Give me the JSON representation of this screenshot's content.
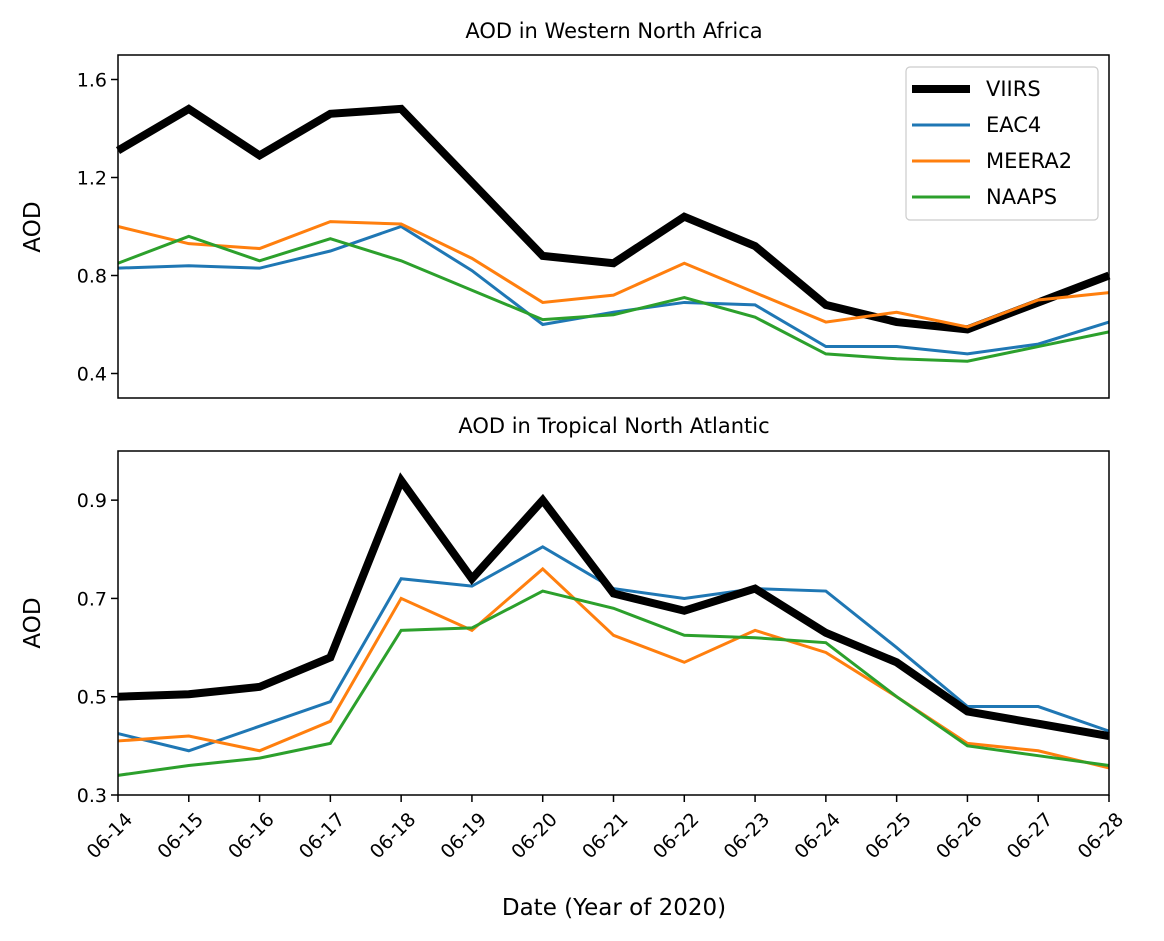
{
  "chart_data": {
    "type": "line",
    "x": [
      "06-14",
      "06-15",
      "06-16",
      "06-17",
      "06-18",
      "06-19",
      "06-20",
      "06-21",
      "06-22",
      "06-23",
      "06-24",
      "06-25",
      "06-26",
      "06-27",
      "06-28"
    ],
    "xlabel": "Date (Year of 2020)",
    "legend": {
      "placement": "top-right",
      "entries": [
        "VIIRS",
        "EAC4",
        "MEERA2",
        "NAAPS"
      ]
    },
    "colors": {
      "VIIRS": "#000000",
      "EAC4": "#1f77b4",
      "MEERA2": "#ff7f0e",
      "NAAPS": "#2ca02c"
    },
    "panels": [
      {
        "title": "AOD in Western North Africa",
        "ylabel": "AOD",
        "ylim": [
          0.3,
          1.7
        ],
        "yticks": [
          "0.4",
          "0.8",
          "1.2",
          "1.6"
        ],
        "ytick_values": [
          0.4,
          0.8,
          1.2,
          1.6
        ],
        "show_xticks": false,
        "series": [
          {
            "name": "VIIRS",
            "values": [
              1.31,
              1.48,
              1.29,
              1.46,
              1.48,
              1.18,
              0.88,
              0.85,
              1.04,
              0.92,
              0.68,
              0.61,
              0.58,
              0.69,
              0.8
            ]
          },
          {
            "name": "EAC4",
            "values": [
              0.83,
              0.84,
              0.83,
              0.9,
              1.0,
              0.82,
              0.6,
              0.65,
              0.69,
              0.68,
              0.51,
              0.51,
              0.48,
              0.52,
              0.61
            ]
          },
          {
            "name": "MEERA2",
            "values": [
              1.0,
              0.93,
              0.91,
              1.02,
              1.01,
              0.87,
              0.69,
              0.72,
              0.85,
              0.73,
              0.61,
              0.65,
              0.59,
              0.7,
              0.73
            ]
          },
          {
            "name": "NAAPS",
            "values": [
              0.85,
              0.96,
              0.86,
              0.95,
              0.86,
              0.74,
              0.62,
              0.64,
              0.71,
              0.63,
              0.48,
              0.46,
              0.45,
              0.51,
              0.57
            ]
          }
        ]
      },
      {
        "title": "AOD in Tropical North Atlantic",
        "ylabel": "AOD",
        "ylim": [
          0.3,
          1.0
        ],
        "yticks": [
          "0.3",
          "0.5",
          "0.7",
          "0.9"
        ],
        "ytick_values": [
          0.3,
          0.5,
          0.7,
          0.9
        ],
        "show_xticks": true,
        "series": [
          {
            "name": "VIIRS",
            "values": [
              0.5,
              0.505,
              0.52,
              0.58,
              0.94,
              0.74,
              0.9,
              0.71,
              0.675,
              0.72,
              0.63,
              0.57,
              0.47,
              0.445,
              0.42
            ]
          },
          {
            "name": "EAC4",
            "values": [
              0.425,
              0.39,
              0.44,
              0.49,
              0.74,
              0.725,
              0.805,
              0.72,
              0.7,
              0.72,
              0.715,
              0.6,
              0.48,
              0.48,
              0.43
            ]
          },
          {
            "name": "MEERA2",
            "values": [
              0.41,
              0.42,
              0.39,
              0.45,
              0.7,
              0.635,
              0.76,
              0.625,
              0.57,
              0.635,
              0.59,
              0.5,
              0.405,
              0.39,
              0.355
            ]
          },
          {
            "name": "NAAPS",
            "values": [
              0.34,
              0.36,
              0.375,
              0.405,
              0.635,
              0.64,
              0.715,
              0.68,
              0.625,
              0.62,
              0.61,
              0.5,
              0.4,
              0.38,
              0.36
            ]
          }
        ]
      }
    ]
  }
}
